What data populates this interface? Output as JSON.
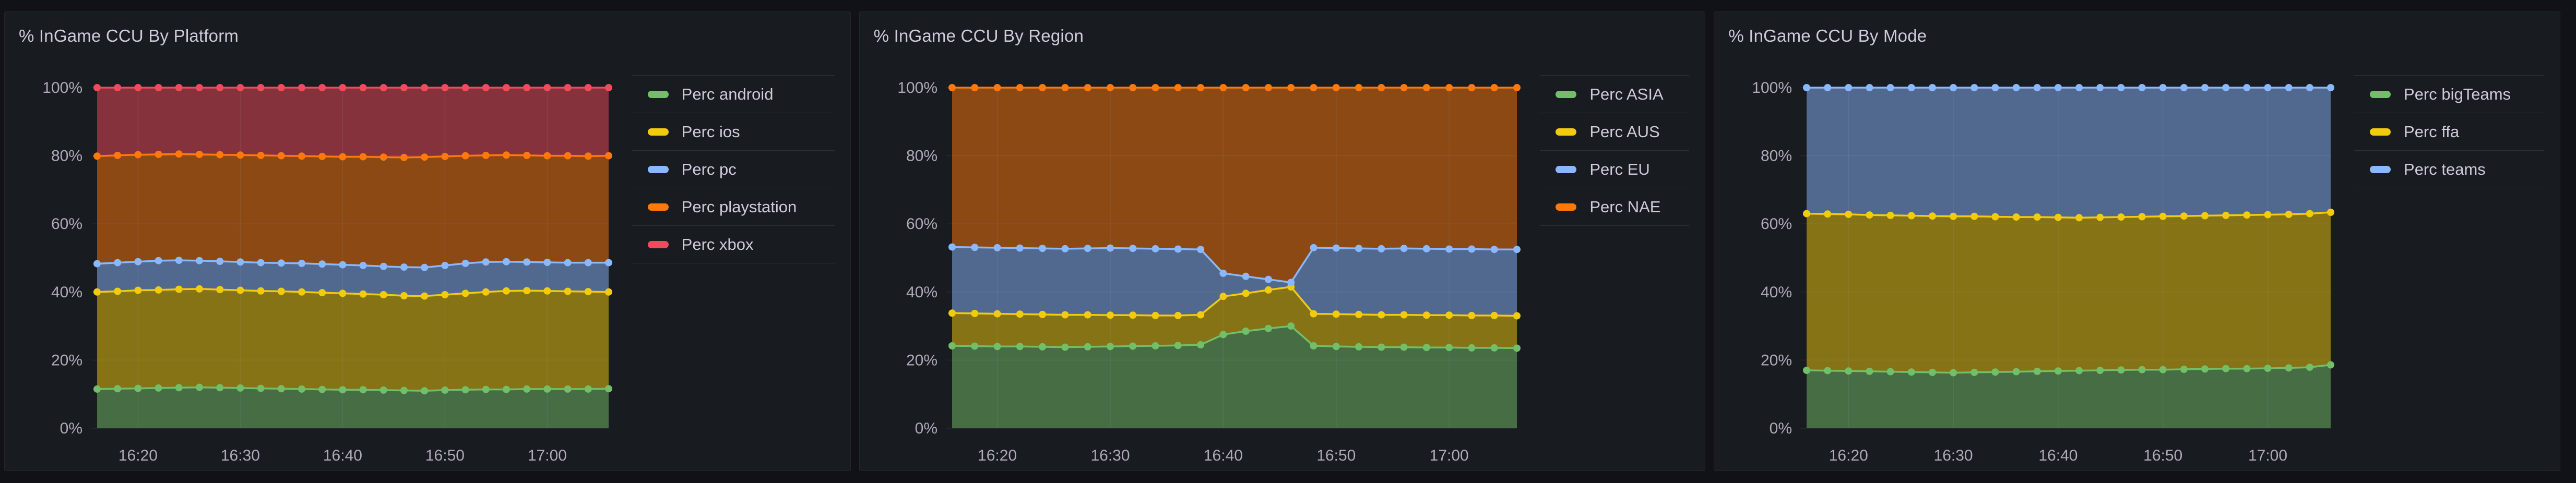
{
  "theme": {
    "page_background": "#111217",
    "panel_background": "#181B1F",
    "panel_border": "#24262B",
    "title_color": "#CCCCDC",
    "axis_text_color": "rgba(204,204,220,0.82)",
    "legend_text_color": "#CCCCDC",
    "grid_color": "rgba(204,204,220,0.09)",
    "fill_opacity": 0.5
  },
  "chart_data": [
    {
      "type": "area",
      "stacked": true,
      "unit": "percent",
      "title": "% InGame CCU By Platform",
      "legend_position": "right",
      "grid": true,
      "ylim": [
        0,
        100
      ],
      "y_tick_labels": [
        "0%",
        "20%",
        "40%",
        "60%",
        "80%",
        "100%"
      ],
      "x_tick_labels": [
        "16:20",
        "16:30",
        "16:40",
        "16:50",
        "17:00"
      ],
      "x": [
        "16:16",
        "16:18",
        "16:20",
        "16:22",
        "16:24",
        "16:26",
        "16:28",
        "16:30",
        "16:32",
        "16:34",
        "16:36",
        "16:38",
        "16:40",
        "16:42",
        "16:44",
        "16:46",
        "16:48",
        "16:50",
        "16:52",
        "16:54",
        "16:56",
        "16:58",
        "17:00",
        "17:02",
        "17:04",
        "17:06"
      ],
      "series": [
        {
          "name": "Perc android",
          "color": "#73BF69",
          "values": [
            11.5,
            11.6,
            11.7,
            11.8,
            11.9,
            12.0,
            11.9,
            11.8,
            11.7,
            11.6,
            11.5,
            11.4,
            11.3,
            11.3,
            11.2,
            11.1,
            11.0,
            11.2,
            11.3,
            11.4,
            11.4,
            11.5,
            11.5,
            11.5,
            11.5,
            11.6
          ]
        },
        {
          "name": "Perc ios",
          "color": "#F2CC0C",
          "values": [
            28.5,
            28.6,
            28.8,
            28.8,
            28.9,
            28.9,
            28.8,
            28.7,
            28.6,
            28.6,
            28.5,
            28.4,
            28.3,
            28.1,
            28.0,
            27.8,
            27.8,
            28.0,
            28.3,
            28.6,
            28.9,
            28.9,
            28.8,
            28.7,
            28.6,
            28.4
          ]
        },
        {
          "name": "Perc pc",
          "color": "#8AB8FF",
          "values": [
            8.3,
            8.4,
            8.4,
            8.6,
            8.5,
            8.3,
            8.3,
            8.3,
            8.3,
            8.3,
            8.4,
            8.4,
            8.4,
            8.4,
            8.3,
            8.4,
            8.4,
            8.6,
            8.8,
            8.8,
            8.6,
            8.4,
            8.4,
            8.4,
            8.5,
            8.6
          ]
        },
        {
          "name": "Perc playstation",
          "color": "#FF780A",
          "values": [
            31.6,
            31.5,
            31.4,
            31.2,
            31.2,
            31.2,
            31.3,
            31.4,
            31.5,
            31.5,
            31.5,
            31.6,
            31.7,
            31.9,
            32.1,
            32.2,
            32.4,
            32.0,
            31.6,
            31.3,
            31.3,
            31.3,
            31.3,
            31.4,
            31.3,
            31.4
          ]
        },
        {
          "name": "Perc xbox",
          "color": "#F2495C",
          "values": [
            20.1,
            19.9,
            19.7,
            19.6,
            19.5,
            19.6,
            19.7,
            19.8,
            19.9,
            20.0,
            20.1,
            20.2,
            20.3,
            20.3,
            20.4,
            20.5,
            20.4,
            20.2,
            20.0,
            19.9,
            19.8,
            19.9,
            20.0,
            20.0,
            20.1,
            20.0
          ]
        }
      ]
    },
    {
      "type": "area",
      "stacked": true,
      "unit": "percent",
      "title": "% InGame CCU By Region",
      "legend_position": "right",
      "grid": true,
      "ylim": [
        0,
        100
      ],
      "y_tick_labels": [
        "0%",
        "20%",
        "40%",
        "60%",
        "80%",
        "100%"
      ],
      "x_tick_labels": [
        "16:20",
        "16:30",
        "16:40",
        "16:50",
        "17:00"
      ],
      "x": [
        "16:16",
        "16:18",
        "16:20",
        "16:22",
        "16:24",
        "16:26",
        "16:28",
        "16:30",
        "16:32",
        "16:34",
        "16:36",
        "16:38",
        "16:40",
        "16:42",
        "16:44",
        "16:46",
        "16:48",
        "16:50",
        "16:52",
        "16:54",
        "16:56",
        "16:58",
        "17:00",
        "17:02",
        "17:04",
        "17:06"
      ],
      "series": [
        {
          "name": "Perc ASIA",
          "color": "#73BF69",
          "values": [
            24.2,
            24.1,
            24.0,
            24.0,
            23.9,
            23.8,
            23.9,
            24.0,
            24.1,
            24.2,
            24.3,
            24.5,
            27.5,
            28.5,
            29.3,
            30.0,
            24.2,
            24.0,
            23.9,
            23.8,
            23.8,
            23.7,
            23.7,
            23.6,
            23.6,
            23.5
          ]
        },
        {
          "name": "Perc AUS",
          "color": "#F2CC0C",
          "values": [
            9.6,
            9.6,
            9.6,
            9.5,
            9.5,
            9.5,
            9.4,
            9.2,
            9.1,
            8.9,
            8.8,
            8.8,
            11.2,
            11.1,
            11.3,
            11.5,
            9.4,
            9.5,
            9.5,
            9.5,
            9.5,
            9.5,
            9.5,
            9.5,
            9.5,
            9.5
          ]
        },
        {
          "name": "Perc EU",
          "color": "#8AB8FF",
          "values": [
            19.4,
            19.4,
            19.4,
            19.4,
            19.4,
            19.4,
            19.5,
            19.7,
            19.6,
            19.6,
            19.5,
            19.2,
            6.8,
            5.0,
            3.1,
            1.3,
            19.4,
            19.4,
            19.4,
            19.4,
            19.5,
            19.5,
            19.4,
            19.5,
            19.4,
            19.5
          ]
        },
        {
          "name": "Perc NAE",
          "color": "#FF780A",
          "values": [
            46.8,
            46.9,
            47.0,
            47.1,
            47.2,
            47.3,
            47.2,
            47.1,
            47.2,
            47.3,
            47.4,
            47.5,
            54.5,
            55.4,
            56.3,
            57.2,
            47.0,
            47.1,
            47.2,
            47.3,
            47.2,
            47.3,
            47.4,
            47.4,
            47.5,
            47.5
          ]
        }
      ]
    },
    {
      "type": "area",
      "stacked": true,
      "unit": "percent",
      "title": "% InGame CCU By Mode",
      "legend_position": "right",
      "grid": true,
      "ylim": [
        0,
        100
      ],
      "y_tick_labels": [
        "0%",
        "20%",
        "40%",
        "60%",
        "80%",
        "100%"
      ],
      "x_tick_labels": [
        "16:20",
        "16:30",
        "16:40",
        "16:50",
        "17:00"
      ],
      "x": [
        "16:16",
        "16:18",
        "16:20",
        "16:22",
        "16:24",
        "16:26",
        "16:28",
        "16:30",
        "16:32",
        "16:34",
        "16:36",
        "16:38",
        "16:40",
        "16:42",
        "16:44",
        "16:46",
        "16:48",
        "16:50",
        "16:52",
        "16:54",
        "16:56",
        "16:58",
        "17:00",
        "17:02",
        "17:04",
        "17:06"
      ],
      "series": [
        {
          "name": "Perc bigTeams",
          "color": "#73BF69",
          "values": [
            17.0,
            16.9,
            16.8,
            16.7,
            16.6,
            16.5,
            16.4,
            16.3,
            16.4,
            16.5,
            16.6,
            16.7,
            16.8,
            16.9,
            17.0,
            17.1,
            17.2,
            17.2,
            17.3,
            17.4,
            17.5,
            17.5,
            17.6,
            17.7,
            17.9,
            18.6
          ]
        },
        {
          "name": "Perc ffa",
          "color": "#F2CC0C",
          "values": [
            46.0,
            46.0,
            46.0,
            45.9,
            45.9,
            45.9,
            45.9,
            45.9,
            45.8,
            45.6,
            45.4,
            45.3,
            45.1,
            44.9,
            44.9,
            44.9,
            44.9,
            45.0,
            45.0,
            45.0,
            45.0,
            45.1,
            45.1,
            45.1,
            45.1,
            44.8
          ]
        },
        {
          "name": "Perc teams",
          "color": "#8AB8FF",
          "values": [
            37.0,
            37.1,
            37.2,
            37.4,
            37.5,
            37.6,
            37.7,
            37.8,
            37.8,
            37.9,
            38.0,
            38.0,
            38.1,
            38.2,
            38.1,
            38.0,
            37.9,
            37.8,
            37.7,
            37.6,
            37.5,
            37.4,
            37.3,
            37.2,
            37.0,
            36.6
          ]
        }
      ]
    }
  ]
}
